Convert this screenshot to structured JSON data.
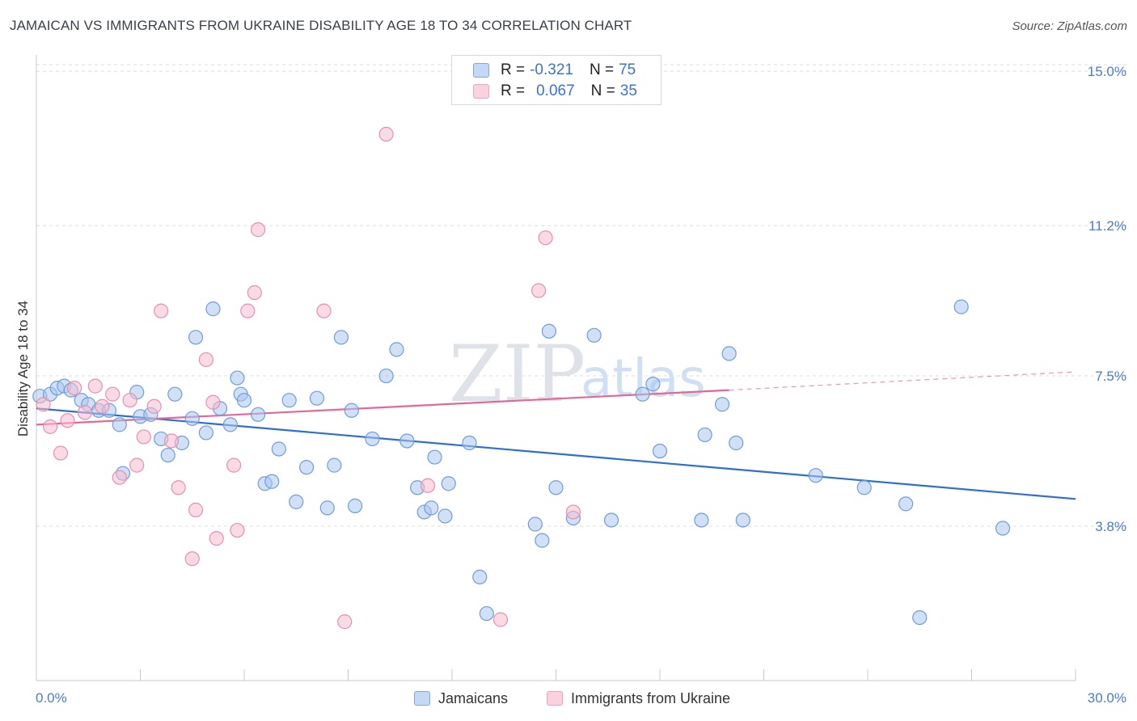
{
  "title": "JAMAICAN VS IMMIGRANTS FROM UKRAINE DISABILITY AGE 18 TO 34 CORRELATION CHART",
  "source": "Source: ZipAtlas.com",
  "colors": {
    "blue": "#4a7bd0",
    "blue_fill": "#a9c6ee",
    "blue_line": "#2e6fd0",
    "pink_fill": "#f5bccd",
    "pink_line": "#e2689a",
    "grid": "#dcdcdc"
  },
  "legend": {
    "rows": [
      {
        "r_label": "R =",
        "r_value": "-0.321",
        "n_label": "N =",
        "n_value": "75"
      },
      {
        "r_label": "R =",
        "r_value": "0.067",
        "n_label": "N =",
        "n_value": "35"
      }
    ]
  },
  "bottom_legend": {
    "series1": "Jamaicans",
    "series2": "Immigrants from Ukraine"
  },
  "watermark": {
    "zip": "ZIP",
    "atlas": "atlas"
  },
  "chart_data": {
    "type": "scatter",
    "title": "JAMAICAN VS IMMIGRANTS FROM UKRAINE DISABILITY AGE 18 TO 34 CORRELATION CHART",
    "xlabel": "",
    "ylabel": "Disability Age 18 to 34",
    "xlim": [
      0,
      30
    ],
    "ylim": [
      0,
      15.4
    ],
    "x_tick_labels": [
      "0.0%",
      "30.0%"
    ],
    "y_ticks": [
      3.8,
      7.5,
      11.2,
      15.0
    ],
    "y_tick_labels": [
      "3.8%",
      "7.5%",
      "11.2%",
      "15.0%"
    ],
    "grid": true,
    "series": [
      {
        "name": "Jamaicans",
        "r": -0.321,
        "n": 75,
        "trend": {
          "x0": 0.0,
          "y0": 6.7,
          "x1": 30.0,
          "y1": 4.47
        },
        "points": [
          [
            0.1,
            7.0
          ],
          [
            0.4,
            7.05
          ],
          [
            0.6,
            7.2
          ],
          [
            0.8,
            7.25
          ],
          [
            1.0,
            7.15
          ],
          [
            1.3,
            6.9
          ],
          [
            1.5,
            6.8
          ],
          [
            1.8,
            6.65
          ],
          [
            2.1,
            6.65
          ],
          [
            2.4,
            6.3
          ],
          [
            2.5,
            5.1
          ],
          [
            2.9,
            7.1
          ],
          [
            3.0,
            6.5
          ],
          [
            3.3,
            6.55
          ],
          [
            3.6,
            5.95
          ],
          [
            3.8,
            5.55
          ],
          [
            4.0,
            7.05
          ],
          [
            4.2,
            5.85
          ],
          [
            4.5,
            6.45
          ],
          [
            4.6,
            8.45
          ],
          [
            4.9,
            6.1
          ],
          [
            5.1,
            9.15
          ],
          [
            5.3,
            6.7
          ],
          [
            5.6,
            6.3
          ],
          [
            5.8,
            7.45
          ],
          [
            5.9,
            7.05
          ],
          [
            6.0,
            6.9
          ],
          [
            6.4,
            6.55
          ],
          [
            6.6,
            4.85
          ],
          [
            6.8,
            4.9
          ],
          [
            7.0,
            5.7
          ],
          [
            7.3,
            6.9
          ],
          [
            7.5,
            4.4
          ],
          [
            7.8,
            5.25
          ],
          [
            8.1,
            6.95
          ],
          [
            8.4,
            4.25
          ],
          [
            8.6,
            5.3
          ],
          [
            8.8,
            8.45
          ],
          [
            9.1,
            6.65
          ],
          [
            9.2,
            4.3
          ],
          [
            9.7,
            5.95
          ],
          [
            10.1,
            7.5
          ],
          [
            10.4,
            8.15
          ],
          [
            10.7,
            5.9
          ],
          [
            11.0,
            4.75
          ],
          [
            11.2,
            4.15
          ],
          [
            11.4,
            4.25
          ],
          [
            11.5,
            5.5
          ],
          [
            11.8,
            4.05
          ],
          [
            11.9,
            4.85
          ],
          [
            12.5,
            5.85
          ],
          [
            12.8,
            2.55
          ],
          [
            13.0,
            1.65
          ],
          [
            14.4,
            3.85
          ],
          [
            14.6,
            3.45
          ],
          [
            14.8,
            8.6
          ],
          [
            15.0,
            4.75
          ],
          [
            15.5,
            4.0
          ],
          [
            16.1,
            8.5
          ],
          [
            16.6,
            3.95
          ],
          [
            17.5,
            7.05
          ],
          [
            17.8,
            7.3
          ],
          [
            18.0,
            5.65
          ],
          [
            19.2,
            3.95
          ],
          [
            19.3,
            6.05
          ],
          [
            19.8,
            6.8
          ],
          [
            20.0,
            8.05
          ],
          [
            20.2,
            5.85
          ],
          [
            20.4,
            3.95
          ],
          [
            22.5,
            5.05
          ],
          [
            23.9,
            4.75
          ],
          [
            25.1,
            4.35
          ],
          [
            25.5,
            1.55
          ],
          [
            26.7,
            9.2
          ],
          [
            27.9,
            3.75
          ]
        ]
      },
      {
        "name": "Immigrants from Ukraine",
        "r": 0.067,
        "n": 35,
        "trend": {
          "x0": 0.0,
          "y0": 6.3,
          "x1": 20.0,
          "y1": 7.15
        },
        "trend_dashed": {
          "x0": 20.0,
          "y0": 7.15,
          "x1": 30.0,
          "y1": 7.6
        },
        "points": [
          [
            0.2,
            6.8
          ],
          [
            0.4,
            6.25
          ],
          [
            0.7,
            5.6
          ],
          [
            0.9,
            6.4
          ],
          [
            1.1,
            7.2
          ],
          [
            1.4,
            6.6
          ],
          [
            1.7,
            7.25
          ],
          [
            1.9,
            6.75
          ],
          [
            2.2,
            7.05
          ],
          [
            2.4,
            5.0
          ],
          [
            2.7,
            6.9
          ],
          [
            2.9,
            5.3
          ],
          [
            3.1,
            6.0
          ],
          [
            3.4,
            6.75
          ],
          [
            3.6,
            9.1
          ],
          [
            3.9,
            5.9
          ],
          [
            4.1,
            4.75
          ],
          [
            4.5,
            3.0
          ],
          [
            4.6,
            4.2
          ],
          [
            4.9,
            7.9
          ],
          [
            5.1,
            6.85
          ],
          [
            5.2,
            3.5
          ],
          [
            5.7,
            5.3
          ],
          [
            5.8,
            3.7
          ],
          [
            6.1,
            9.1
          ],
          [
            6.3,
            9.55
          ],
          [
            6.4,
            11.1
          ],
          [
            8.3,
            9.1
          ],
          [
            8.9,
            1.45
          ],
          [
            10.1,
            13.45
          ],
          [
            11.3,
            4.8
          ],
          [
            13.4,
            1.5
          ],
          [
            14.5,
            9.6
          ],
          [
            14.7,
            10.9
          ],
          [
            15.5,
            4.15
          ]
        ]
      }
    ]
  }
}
